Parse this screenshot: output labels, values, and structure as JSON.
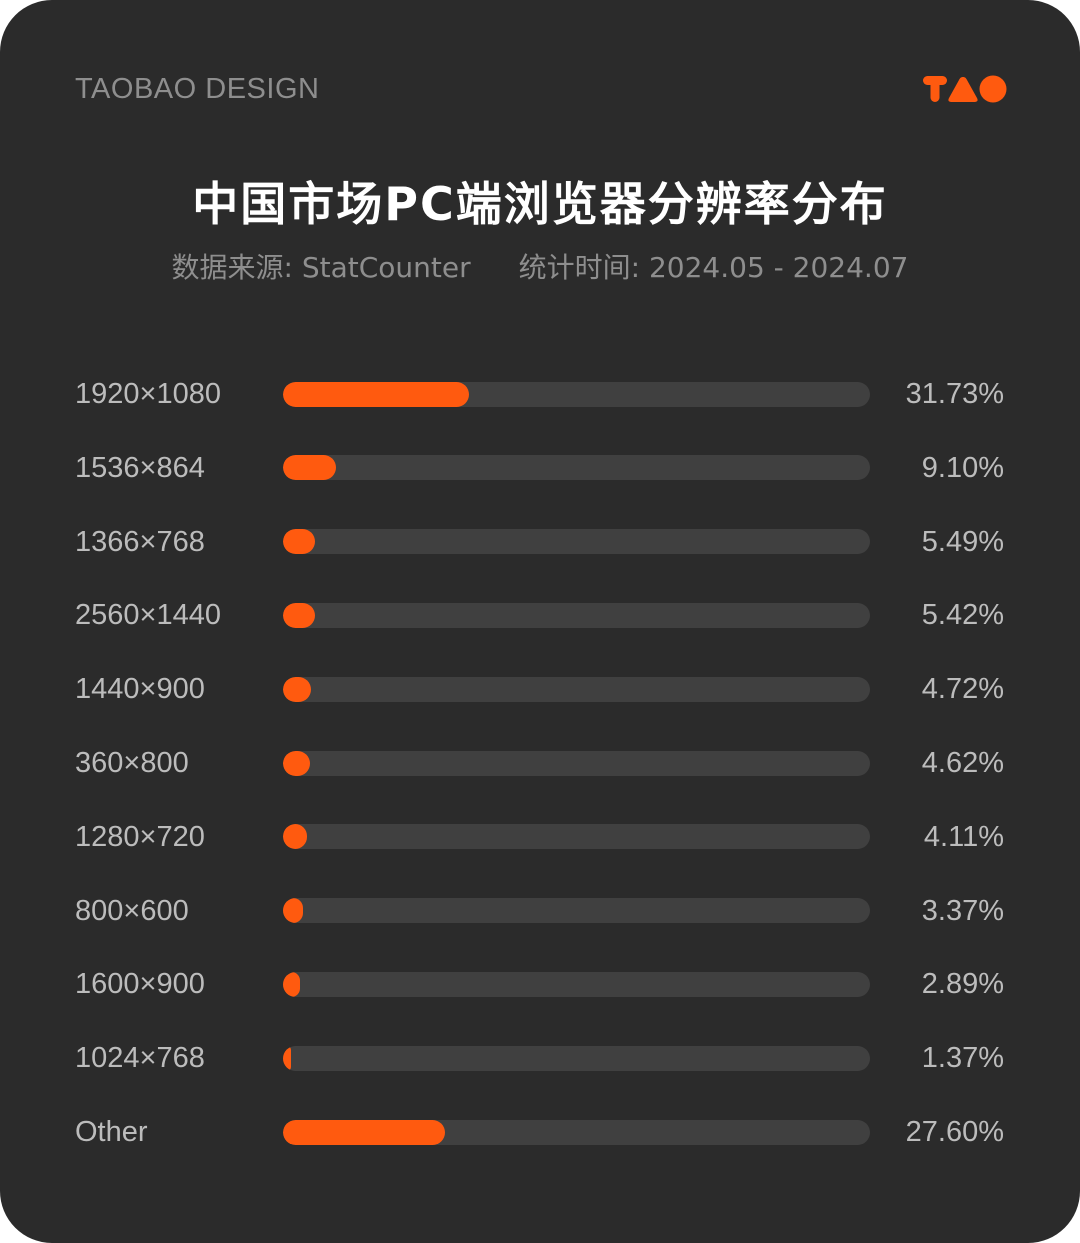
{
  "header": {
    "brand": "TAOBAO DESIGN",
    "logo_icon": "tao-logo-icon",
    "title": "中国市场PC端浏览器分辨率分布",
    "source": "数据来源: StatCounter",
    "period": "统计时间: 2024.05 - 2024.07"
  },
  "colors": {
    "background": "#2b2b2b",
    "accent": "#ff5a0f",
    "track": "#404040",
    "text_primary": "#ffffff",
    "text_secondary": "#8e8e8e"
  },
  "chart_data": {
    "type": "bar",
    "orientation": "horizontal",
    "title": "中国市场PC端浏览器分辨率分布",
    "categories": [
      "1920×1080",
      "1536×864",
      "1366×768",
      "2560×1440",
      "1440×900",
      "360×800",
      "1280×720",
      "800×600",
      "1600×900",
      "1024×768",
      "Other"
    ],
    "values": [
      31.73,
      9.1,
      5.49,
      5.42,
      4.72,
      4.62,
      4.11,
      3.37,
      2.89,
      1.37,
      27.6
    ],
    "value_labels": [
      "31.73%",
      "9.10%",
      "5.49%",
      "5.42%",
      "4.72%",
      "4.62%",
      "4.11%",
      "3.37%",
      "2.89%",
      "1.37%",
      "27.60%"
    ],
    "xlim": [
      0,
      100
    ],
    "grid": false
  }
}
